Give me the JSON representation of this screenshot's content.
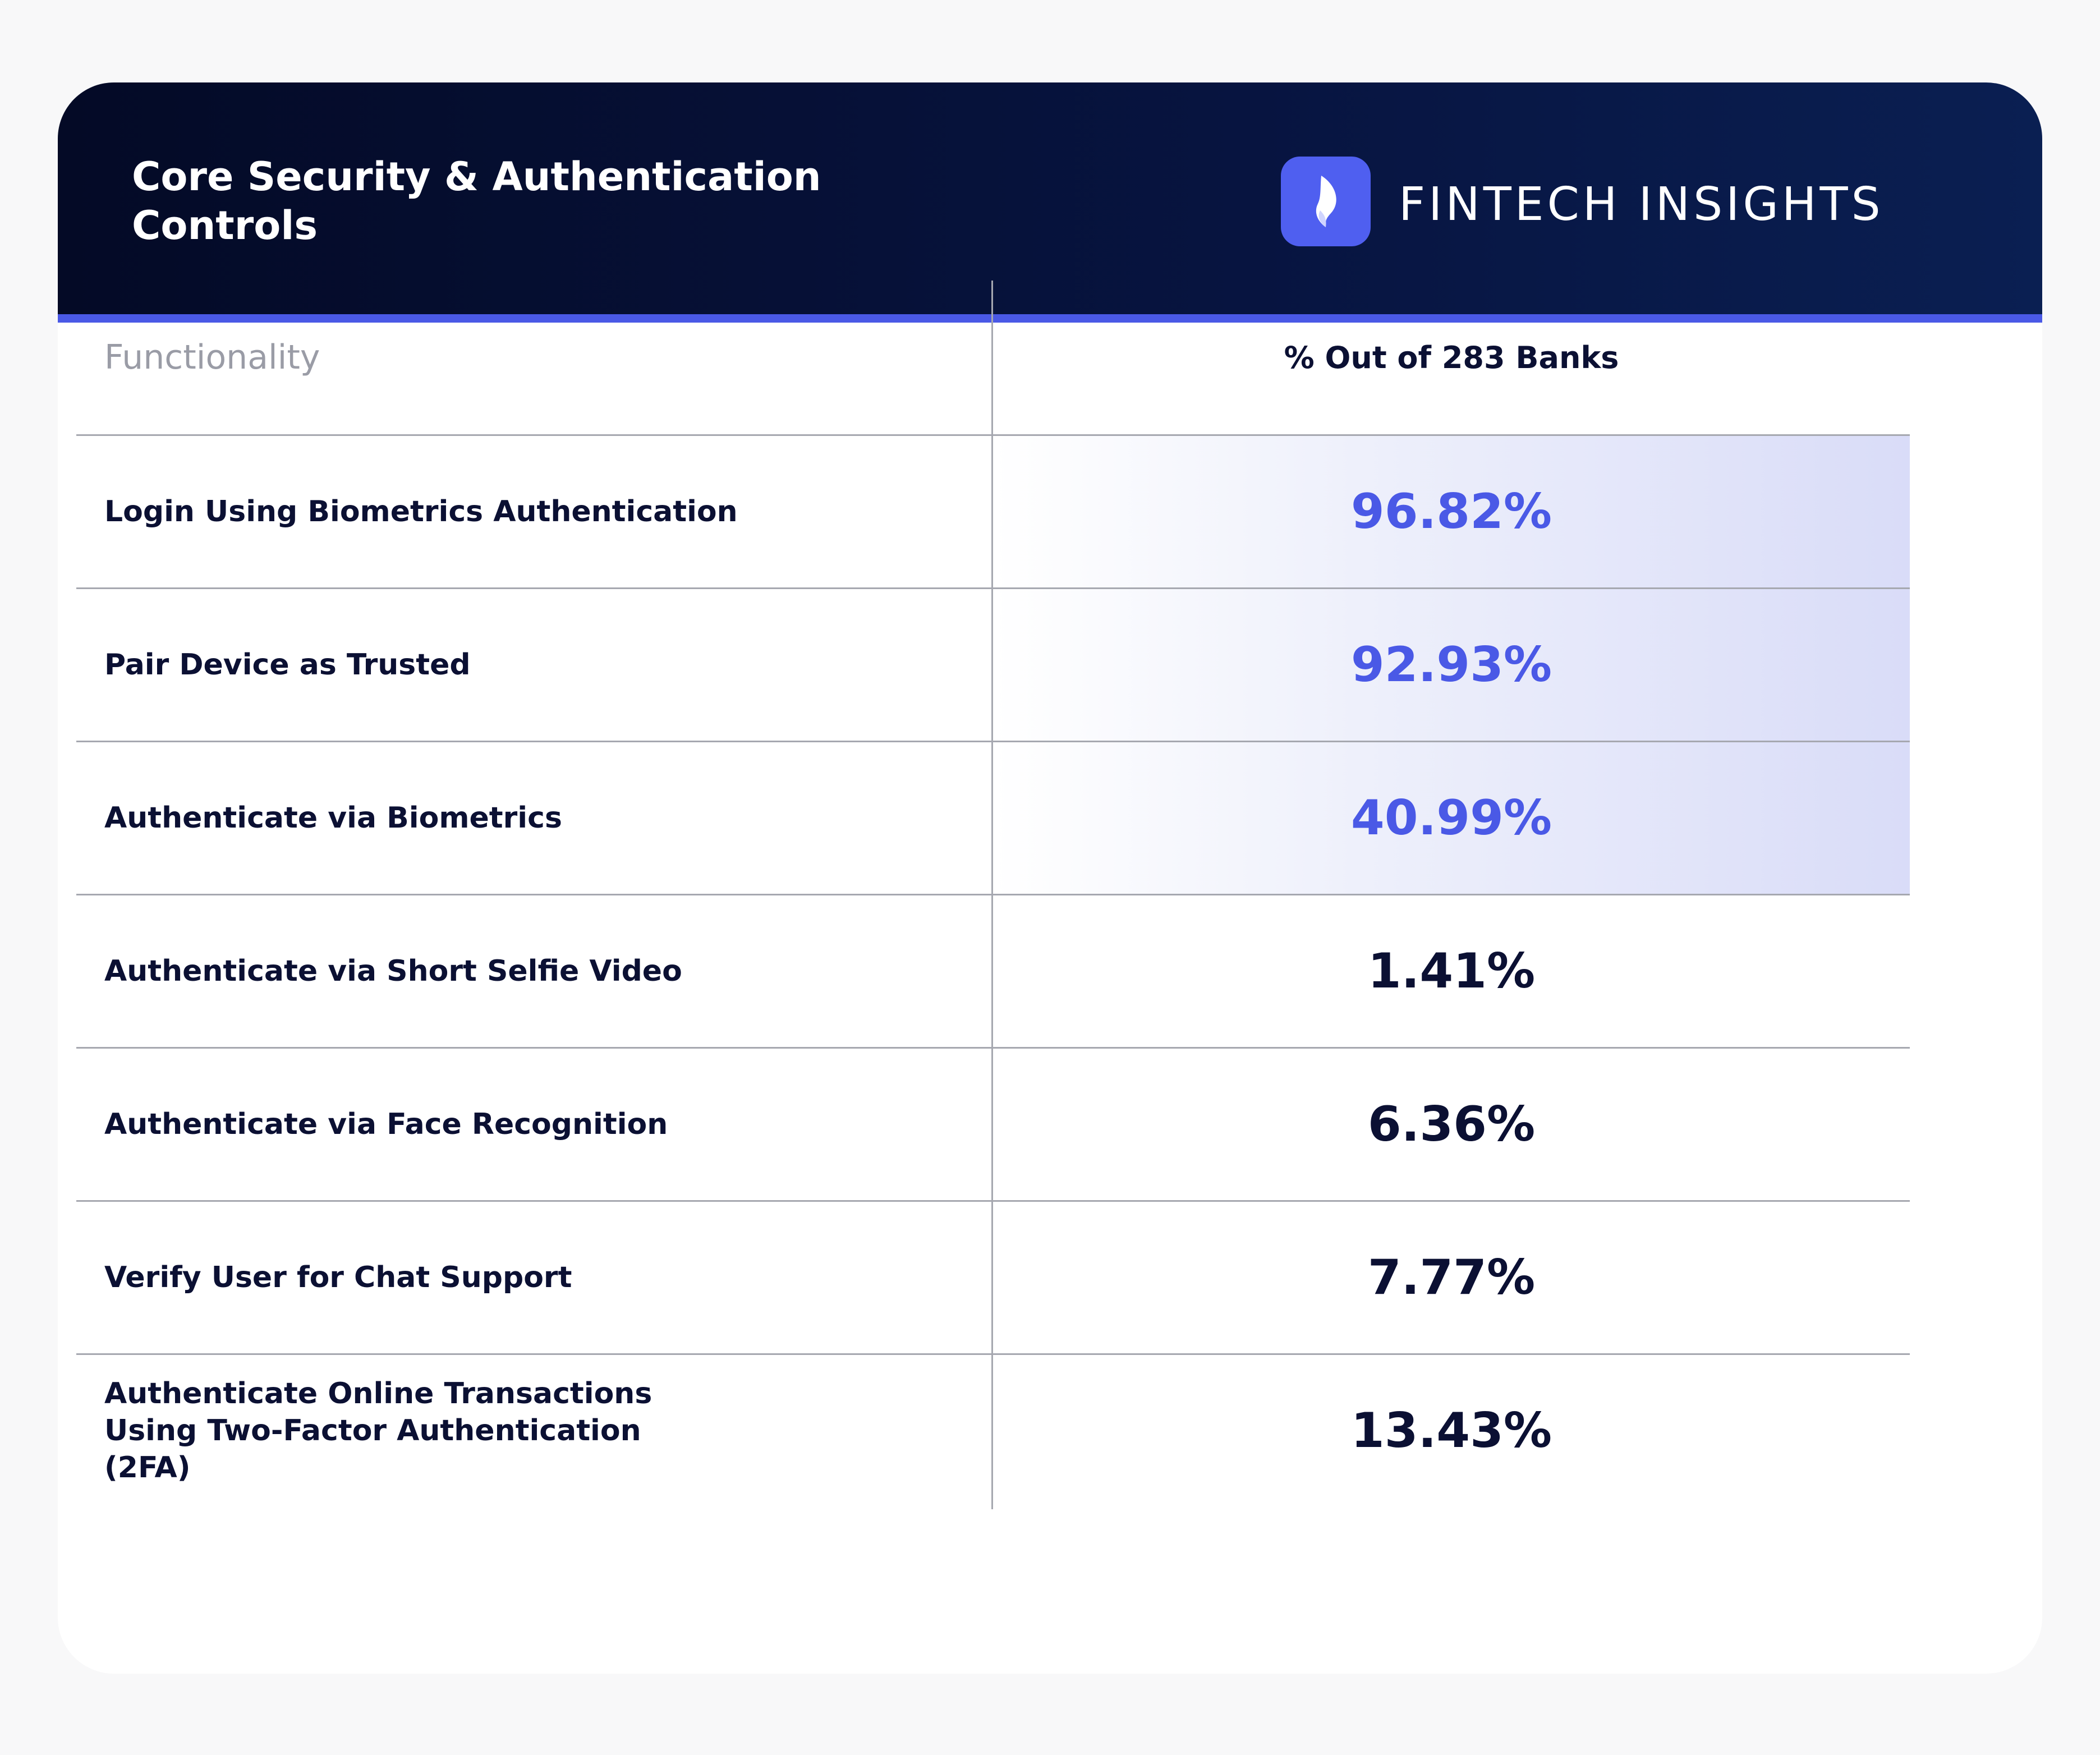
{
  "header": {
    "title": "Core Security & Authentication Controls",
    "brand": "FINTECH INSIGHTS",
    "logo_icon": "leaf-drop-icon",
    "accent_color": "#4a59e6"
  },
  "chart_data": {
    "type": "table",
    "columns": [
      "Functionality",
      "% Out of 283 Banks"
    ],
    "rows": [
      {
        "label": "Login Using Biometrics Authentication",
        "value": "96.82%",
        "highlight": true
      },
      {
        "label": "Pair Device as Trusted",
        "value": "92.93%",
        "highlight": true
      },
      {
        "label": "Authenticate via Biometrics",
        "value": "40.99%",
        "highlight": true
      },
      {
        "label": "Authenticate via Short Selfie Video",
        "value": "1.41%",
        "highlight": false
      },
      {
        "label": "Authenticate via Face Recognition",
        "value": "6.36%",
        "highlight": false
      },
      {
        "label": "Verify User for Chat Support",
        "value": "7.77%",
        "highlight": false
      },
      {
        "label": "Authenticate Online Transactions Using Two-Factor Authentication (2FA)",
        "value": "13.43%",
        "highlight": false
      }
    ]
  }
}
